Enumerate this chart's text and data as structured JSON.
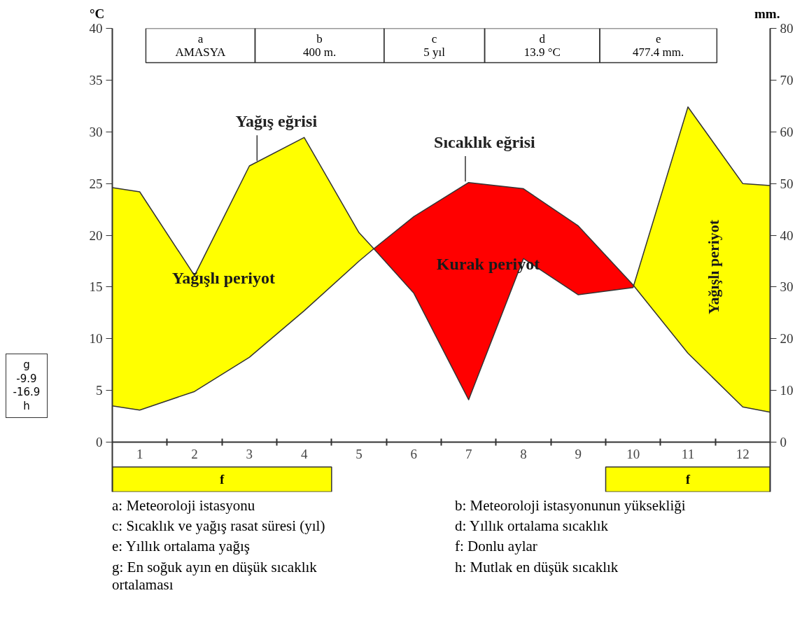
{
  "chart_data": {
    "type": "line",
    "xlim": [
      0.5,
      12.5
    ],
    "xticks": [
      1,
      {
        "value": 1.5,
        "label": null
      },
      2,
      {
        "value": 2.5,
        "label": null
      },
      3,
      {
        "value": 3.5,
        "label": null
      },
      4,
      {
        "value": 4.5,
        "label": null
      },
      5,
      {
        "value": 5.5,
        "label": null
      },
      6,
      {
        "value": 6.5,
        "label": null
      },
      7,
      {
        "value": 7.5,
        "label": null
      },
      8,
      {
        "value": 8.5,
        "label": null
      },
      9,
      {
        "value": 9.5,
        "label": null
      },
      10,
      {
        "value": 10.5,
        "label": null
      },
      11,
      {
        "value": 11.5,
        "label": null
      },
      12
    ],
    "ylim": [
      -4.8,
      40
    ],
    "yticks": [
      0,
      5,
      10,
      15,
      20,
      25,
      30,
      35,
      40
    ],
    "y2lim": [
      -9.6,
      80
    ],
    "y2ticks": [
      0,
      10,
      20,
      30,
      40,
      50,
      60,
      70,
      80
    ],
    "ylabel": "°C",
    "y2label": "mm.",
    "x": [
      0.5,
      1,
      2,
      3,
      4,
      5,
      5.27,
      6,
      7,
      8,
      9,
      10,
      10.01,
      11,
      12,
      12.5
    ],
    "colors": [
      "#ff0000",
      "#ffff00"
    ],
    "series": [
      {
        "color": "#333333",
        "values": [
          3.5,
          3.1,
          4.9,
          8.2,
          12.7,
          17.5,
          18.7,
          21.8,
          25.1,
          24.5,
          20.9,
          15.2,
          15.13,
          8.6,
          3.4,
          2.9
        ],
        "lower": [
          null,
          null,
          null,
          null,
          null,
          null,
          18.7,
          14.4,
          4.1,
          17.75,
          14.25,
          14.95,
          15.13,
          null,
          null,
          null
        ],
        "upper": [
          null,
          null,
          null,
          null,
          null,
          null,
          18.7,
          21.8,
          25.1,
          24.5,
          20.9,
          15.2,
          15.13,
          null,
          null,
          null
        ]
      },
      {
        "color": "#333333",
        "axis": "y2",
        "values": [
          49.2,
          48.4,
          32.2,
          53.4,
          58.9,
          40.5,
          37.4,
          28.8,
          8.2,
          35.5,
          28.5,
          29.9,
          30.26,
          64.8,
          50.0,
          49.6
        ],
        "lower": [
          7.0,
          6.2,
          9.8,
          16.4,
          25.4,
          35.0,
          37.4,
          null,
          null,
          null,
          null,
          null,
          30.26,
          17.2,
          6.8,
          5.8
        ],
        "upper": [
          49.2,
          48.4,
          32.2,
          53.4,
          58.9,
          40.5,
          37.4,
          null,
          null,
          null,
          null,
          null,
          30.26,
          64.8,
          50.0,
          49.6
        ]
      }
    ],
    "bands": [
      {
        "axis": "x",
        "from": 0.5,
        "to": 4.5,
        "label": "f",
        "color": "#ffff00"
      },
      {
        "axis": "x",
        "from": 9.5,
        "to": 12.5,
        "label": "f",
        "color": "#ffff00"
      }
    ],
    "annotations": [
      "a\nAMASYA",
      "b\n400 m.",
      "c\n5 yıl",
      "d\n13.9 °C",
      "e\n477.4 mm.",
      "g\n-9.9\n-16.9\nh",
      "a: Meteoroloji istasyonu",
      "b: Meteoroloji istasyonunun yüksekliği",
      "c: Sıcaklık ve yağış rasat süresi (yıl)",
      "d: Yıllık ortalama sıcaklık",
      "e: Yıllık ortalama yağış",
      "f: Donlu aylar",
      "g: En soğuk ayın en düşük sıcaklık\nortalaması",
      "h: Mutlak en düşük sıcaklık",
      "Yağışlı periyot",
      "Kurak periyot",
      "Yağışlı periyot",
      {
        "text": "Yağış eğrisi",
        "x": 3.14,
        "y": 27.2
      },
      {
        "text": "Sıcaklık eğrisi",
        "x": 6.94,
        "y": 25.2
      }
    ]
  }
}
